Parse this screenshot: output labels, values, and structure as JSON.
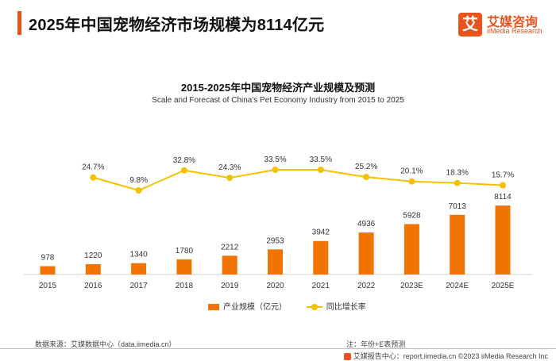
{
  "header": {
    "title": "2025年中国宠物经济市场规模为8114亿元"
  },
  "logo": {
    "mark": "艾",
    "name_cn": "艾媒咨询",
    "name_en": "iiMedia Research"
  },
  "chart_data": {
    "type": "bar",
    "title": "2015-2025年中国宠物经济产业规模及预测",
    "subtitle": "Scale and Forecast of China's Pet Economy Industry from 2015 to 2025",
    "categories": [
      "2015",
      "2016",
      "2017",
      "2018",
      "2019",
      "2020",
      "2021",
      "2022",
      "2023E",
      "2024E",
      "2025E"
    ],
    "series": [
      {
        "name": "产业规模（亿元）",
        "type": "bar",
        "values": [
          978,
          1220,
          1340,
          1780,
          2212,
          2953,
          3942,
          4936,
          5928,
          7013,
          8114
        ],
        "labels": [
          "978",
          "1220",
          "1340",
          "1780",
          "2212",
          "2953",
          "3942",
          "4936",
          "5928",
          "7013",
          "8114"
        ],
        "color": "#f27400"
      },
      {
        "name": "同比增长率",
        "type": "line",
        "values": [
          null,
          24.7,
          9.8,
          32.8,
          24.3,
          33.5,
          33.5,
          25.2,
          20.1,
          18.3,
          15.7
        ],
        "labels": [
          "",
          "24.7%",
          "9.8%",
          "32.8%",
          "24.3%",
          "33.5%",
          "33.5%",
          "25.2%",
          "20.1%",
          "18.3%",
          "15.7%"
        ],
        "color": "#f5c000"
      }
    ],
    "legend": "bottom-center",
    "grid": false
  },
  "footer": {
    "source": "数据来源：艾媒数据中心（data.iimedia.cn）",
    "note": "注：年份+E表预测",
    "credit": "艾媒报告中心：report.iimedia.cn   ©2023  iiMedia Research Inc"
  }
}
